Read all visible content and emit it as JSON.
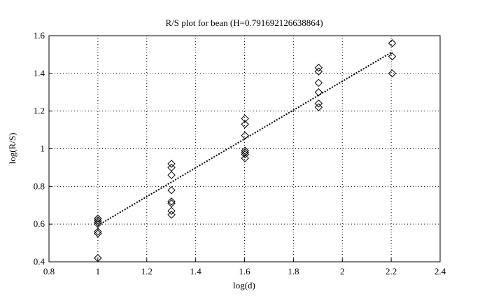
{
  "chart_data": {
    "type": "scatter",
    "title": "R/S plot for bean (H=0.791692126638864)",
    "x_label": "log(d)",
    "y_label": "log(R/S)",
    "series": [
      {
        "type": "scatter",
        "marker": "diamond",
        "color": "#000000",
        "x": [
          1,
          1,
          1,
          1,
          1,
          1,
          1,
          1.301,
          1.301,
          1.301,
          1.301,
          1.301,
          1.301,
          1.301,
          1.301,
          1.602,
          1.602,
          1.602,
          1.602,
          1.602,
          1.602,
          1.602,
          1.903,
          1.903,
          1.903,
          1.903,
          1.903,
          1.903,
          2.204,
          2.204,
          2.204
        ],
        "values": [
          0.63,
          0.62,
          0.61,
          0.6,
          0.56,
          0.55,
          0.42,
          0.92,
          0.9,
          0.86,
          0.78,
          0.72,
          0.71,
          0.67,
          0.65,
          1.16,
          1.13,
          1.07,
          0.99,
          0.98,
          0.97,
          0.95,
          1.43,
          1.41,
          1.35,
          1.3,
          1.24,
          1.22,
          1.56,
          1.49,
          1.4
        ]
      },
      {
        "type": "line",
        "style": "dotted",
        "color": "#000000",
        "x": [
          1,
          2.204
        ],
        "values": [
          0.593,
          1.514
        ]
      }
    ],
    "xlim": [
      0.8,
      2.4
    ],
    "xticks": [
      0.8,
      1,
      1.2,
      1.4,
      1.6,
      1.8,
      2,
      2.2,
      2.4
    ],
    "ylim": [
      0.4,
      1.6
    ],
    "yticks": [
      0.4,
      0.6,
      0.8,
      1,
      1.2,
      1.4,
      1.6
    ],
    "grid": true
  }
}
